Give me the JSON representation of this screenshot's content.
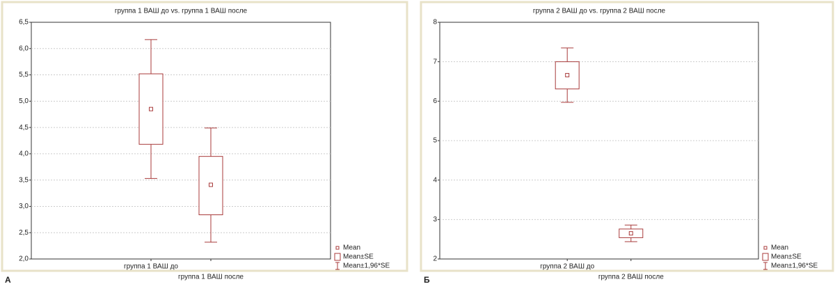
{
  "chart_data": [
    {
      "type": "box",
      "panel_label": "А",
      "title": "группа 1 ВАШ до vs. группа 1 ВАШ после",
      "categories": [
        "группа 1 ВАШ до",
        "группа 1 ВАШ после"
      ],
      "mean": [
        4.85,
        3.41
      ],
      "se_low": [
        4.18,
        2.84
      ],
      "se_high": [
        5.52,
        3.95
      ],
      "ci_low": [
        3.53,
        2.32
      ],
      "ci_high": [
        6.17,
        4.49
      ],
      "legend": [
        "Mean",
        "Mean±SE",
        "Mean±1,96*SE"
      ],
      "color": "#a83a3a",
      "ylim": [
        2.0,
        6.5
      ],
      "yticks": [
        {
          "value": 2.0,
          "label": "2,0"
        },
        {
          "value": 2.5,
          "label": "2,5"
        },
        {
          "value": 3.0,
          "label": "3,0"
        },
        {
          "value": 3.5,
          "label": "3,5"
        },
        {
          "value": 4.0,
          "label": "4,0"
        },
        {
          "value": 4.5,
          "label": "4,5"
        },
        {
          "value": 5.0,
          "label": "5,0"
        },
        {
          "value": 5.5,
          "label": "5,5"
        },
        {
          "value": 6.0,
          "label": "6,0"
        },
        {
          "value": 6.5,
          "label": "6,5"
        }
      ],
      "grid": true
    },
    {
      "type": "box",
      "panel_label": "Б",
      "title": "группа 2 ВАШ до vs. группа 2 ВАШ после",
      "categories": [
        "группа 2 ВАШ до",
        "группа 2 ВАШ после"
      ],
      "mean": [
        6.66,
        2.65
      ],
      "se_low": [
        6.31,
        2.54
      ],
      "se_high": [
        7.0,
        2.76
      ],
      "ci_low": [
        5.97,
        2.44
      ],
      "ci_high": [
        7.35,
        2.86
      ],
      "legend": [
        "Mean",
        "Mean±SE",
        "Mean±1,96*SE"
      ],
      "color": "#a83a3a",
      "ylim": [
        2,
        8
      ],
      "yticks": [
        2,
        3,
        4,
        5,
        6,
        7,
        8
      ],
      "grid": true
    }
  ]
}
